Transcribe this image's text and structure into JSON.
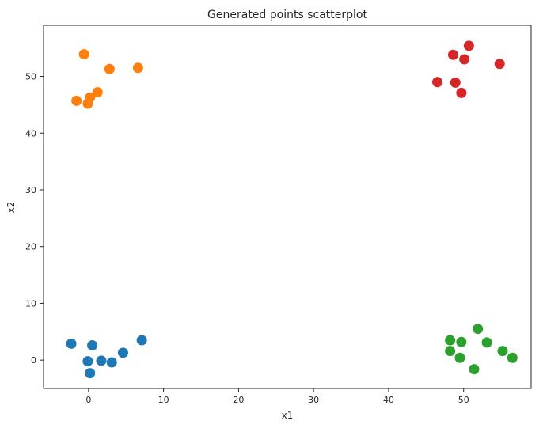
{
  "chart_data": {
    "type": "scatter",
    "title": "Generated points scatterplot",
    "xlabel": "x1",
    "ylabel": "x2",
    "xlim": [
      -6,
      59
    ],
    "ylim": [
      -5,
      59
    ],
    "xticks": [
      0,
      10,
      20,
      30,
      40,
      50
    ],
    "yticks": [
      0,
      10,
      20,
      30,
      40,
      50
    ],
    "xtick_labels": [
      "0",
      "10",
      "20",
      "30",
      "40",
      "50"
    ],
    "ytick_labels": [
      "0",
      "10",
      "20",
      "30",
      "40",
      "50"
    ],
    "grid": false,
    "series": [
      {
        "color": "#1f77b4",
        "points": [
          [
            -2.3,
            2.9
          ],
          [
            0.5,
            2.6
          ],
          [
            -0.1,
            -0.2
          ],
          [
            1.7,
            -0.1
          ],
          [
            3.1,
            -0.4
          ],
          [
            4.6,
            1.3
          ],
          [
            7.1,
            3.5
          ],
          [
            0.2,
            -2.3
          ]
        ]
      },
      {
        "color": "#ff7f0e",
        "points": [
          [
            -0.6,
            53.9
          ],
          [
            2.8,
            51.3
          ],
          [
            6.6,
            51.5
          ],
          [
            -1.6,
            45.7
          ],
          [
            0.2,
            46.3
          ],
          [
            1.2,
            47.2
          ],
          [
            -0.1,
            45.2
          ]
        ]
      },
      {
        "color": "#2ca02c",
        "points": [
          [
            48.2,
            3.5
          ],
          [
            49.7,
            3.2
          ],
          [
            51.9,
            5.5
          ],
          [
            53.1,
            3.1
          ],
          [
            48.2,
            1.6
          ],
          [
            49.5,
            0.4
          ],
          [
            55.2,
            1.6
          ],
          [
            56.5,
            0.4
          ],
          [
            51.4,
            -1.6
          ]
        ]
      },
      {
        "color": "#d62728",
        "points": [
          [
            50.7,
            55.4
          ],
          [
            48.6,
            53.8
          ],
          [
            50.1,
            53.0
          ],
          [
            54.8,
            52.2
          ],
          [
            46.5,
            49.0
          ],
          [
            48.9,
            48.9
          ],
          [
            49.7,
            47.1
          ]
        ]
      }
    ]
  }
}
